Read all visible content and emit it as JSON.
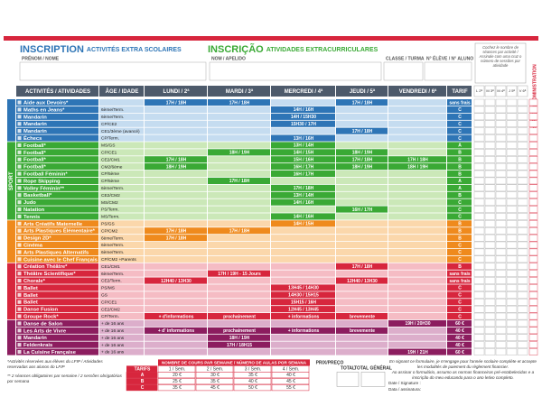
{
  "header": {
    "title_fr": "INSCRIPTION",
    "subtitle_fr": "ACTIVITÉS EXTRA SCOLAIRES",
    "title_pt": "INSCRIÇÃO",
    "subtitle_pt": "ATIVIDADES EXTRACURRICULARES",
    "fields": [
      "PRÉNOM / NOME",
      "NOM / APELIDO",
      "CLASSE / TURMA",
      "N° ÉLÈVE / N° ALUNO"
    ],
    "note": "Cochez le nombre de séances par activité / Assinale com uma cruz o número de sessões por atividade",
    "admin": "RÉSERVÉ À L'ADMINISTRATION"
  },
  "table": {
    "columns": [
      "ACTIVITÉS / ATIVIDADES",
      "ÂGE / IDADE",
      "LUNDI / 2ª",
      "MARDI / 3ª",
      "MERCREDI / 4ª",
      "JEUDI / 5ª",
      "VENDREDI / 6ª",
      "TARIF"
    ],
    "day_boxes": [
      "L 2ª",
      "M 3ª",
      "M 4ª",
      "J 5ª",
      "V 6ª"
    ],
    "groups": [
      {
        "color": "#2e75b6",
        "light": "#c5dcf0",
        "rows": [
          {
            "activity": "Aide aux Devoirs*",
            "age": null,
            "slots": [
              "17H / 18H",
              "17H / 18H",
              null,
              "17H / 18H",
              null
            ],
            "tarif": "sans frais"
          },
          {
            "activity": "Maths en Jeans*",
            "age": "6ème/Term.",
            "slots": [
              null,
              null,
              "14H / 16H",
              null,
              null
            ],
            "tarif": "C"
          },
          {
            "activity": "Mandarin",
            "age": "6ème/Term.",
            "slots": [
              null,
              null,
              "14H / 15H30",
              null,
              null
            ],
            "tarif": "C"
          },
          {
            "activity": "Mandarin",
            "age": "CP/CE2",
            "slots": [
              null,
              null,
              "15H30 / 17H",
              null,
              null
            ],
            "tarif": "C"
          },
          {
            "activity": "Mandarin",
            "age": "CE1/3ème (avancé)",
            "slots": [
              null,
              null,
              null,
              "17H / 18H",
              null
            ],
            "tarif": "C"
          },
          {
            "activity": "Échecs",
            "age": "CP/Term.",
            "slots": [
              null,
              null,
              "13H / 16H",
              null,
              null
            ],
            "tarif": "C"
          }
        ]
      },
      {
        "label": "SPORT",
        "color": "#3aa935",
        "light": "#cbe8b8",
        "rows": [
          {
            "activity": "Football*",
            "age": "MS/GS",
            "slots": [
              null,
              null,
              "13H / 14H",
              null,
              null
            ],
            "tarif": "A"
          },
          {
            "activity": "Football*",
            "age": "CP/CE1",
            "slots": [
              null,
              "18H / 19H",
              "14H / 15H",
              "18H / 19H",
              null
            ],
            "tarif": "B"
          },
          {
            "activity": "Football*",
            "age": "CE2/CM1",
            "slots": [
              "17H / 18H",
              null,
              "15H / 16H",
              "17H / 18H",
              "17H / 18H"
            ],
            "tarif": "B"
          },
          {
            "activity": "Football*",
            "age": "CM2/6ème",
            "slots": [
              "18H / 19H",
              null,
              "16H / 17H",
              "18H / 19H",
              "18H / 19H"
            ],
            "tarif": "B"
          },
          {
            "activity": "Football Féminin*",
            "age": "CP/5ème",
            "slots": [
              null,
              null,
              "16H / 17H",
              null,
              null
            ],
            "tarif": "B"
          },
          {
            "activity": "Rope Skipping",
            "age": "CP/5ème",
            "slots": [
              null,
              "17H / 18H",
              null,
              null,
              null
            ],
            "tarif": "A"
          },
          {
            "activity": "Volley Féminin**",
            "age": "6ème/Term.",
            "slots": [
              null,
              null,
              "17H / 18H",
              null,
              null
            ],
            "tarif": "A"
          },
          {
            "activity": "Basketball*",
            "age": "CE2/CM2",
            "slots": [
              null,
              null,
              "13H / 14H",
              null,
              null
            ],
            "tarif": "B"
          },
          {
            "activity": "Judo",
            "age": "MS/CM2",
            "slots": [
              null,
              null,
              "14H / 16H",
              null,
              null
            ],
            "tarif": "C"
          },
          {
            "activity": "Natation",
            "age": "PS/Term.",
            "slots": [
              null,
              null,
              null,
              "16H / 17H",
              null
            ],
            "tarif": "C"
          },
          {
            "activity": "Tennis",
            "age": "MS/Term.",
            "slots": [
              null,
              null,
              "14H / 16H",
              null,
              null
            ],
            "tarif": "C"
          }
        ]
      },
      {
        "color": "#ef8a1d",
        "light": "#fbd7ab",
        "rows": [
          {
            "activity": "Arts Créatifs Maternelle",
            "age": "PS/GS",
            "slots": [
              null,
              null,
              "14H / 15H",
              null,
              null
            ],
            "tarif": "B"
          },
          {
            "activity": "Arts Plastiques Élémentaire*",
            "age": "CP/CM2",
            "slots": [
              "17H / 18H",
              "17H / 18H",
              null,
              null,
              null
            ],
            "tarif": "B"
          },
          {
            "activity": "Design 2D*",
            "age": "6ème/Term.",
            "slots": [
              "17H / 18H",
              null,
              null,
              null,
              null
            ],
            "tarif": "B"
          },
          {
            "activity": "Cinéma",
            "age": "6ème/Term.",
            "slots": [
              null,
              null,
              null,
              null,
              null
            ],
            "tarif": "C"
          },
          {
            "activity": "Arts Plastiques Alternatifs",
            "age": "6ème/Term.",
            "slots": [
              null,
              null,
              null,
              null,
              null
            ],
            "tarif": "C"
          },
          {
            "activity": "Cuisine avec le Chef Français",
            "age": "CP/CM2 +Parents",
            "slots": [
              null,
              null,
              null,
              null,
              null
            ],
            "tarif": "C"
          }
        ]
      },
      {
        "color": "#d7263d",
        "light": "#f5bcc4",
        "rows": [
          {
            "activity": "Création Théâtre*",
            "age": "CE1/CM1",
            "slots": [
              null,
              null,
              null,
              "17H / 18H",
              null
            ],
            "tarif": "B"
          },
          {
            "activity": "Théâtre Scientifique*",
            "age": "6ème/Term.",
            "slots": [
              null,
              "17H / 19H - 15 Jours",
              null,
              null,
              null
            ],
            "tarif": "sans frais"
          },
          {
            "activity": "Chorale*",
            "age": "CE2/Term.",
            "slots": [
              "12H40 / 13H30",
              null,
              null,
              "12H40 / 13H30",
              null
            ],
            "tarif": "sans frais"
          },
          {
            "activity": "Ballet",
            "age": "PS/MS",
            "slots": [
              null,
              null,
              "13H45 / 14H30",
              null,
              null
            ],
            "tarif": "C"
          },
          {
            "activity": "Ballet",
            "age": "GS",
            "slots": [
              null,
              null,
              "14H30 / 15H15",
              null,
              null
            ],
            "tarif": "C"
          },
          {
            "activity": "Ballet",
            "age": "CP/CE1",
            "slots": [
              null,
              null,
              "15H15 / 16H",
              null,
              null
            ],
            "tarif": "C"
          },
          {
            "activity": "Danse Fusion",
            "age": "CE2/CM2",
            "slots": [
              null,
              null,
              "12H45 / 13H45",
              null,
              null
            ],
            "tarif": "C"
          },
          {
            "activity": "Groupe Rock*",
            "age": "CP/Term.",
            "slots": [
              "+ d'informations",
              "prochainement",
              "+ informations",
              "brevemente",
              null
            ],
            "tarif": "C"
          }
        ]
      },
      {
        "color": "#8c1d5f",
        "light": "#dcaecb",
        "rows": [
          {
            "activity": "Danse de Salon",
            "age": "+ de 16 ans",
            "slots": [
              null,
              null,
              null,
              null,
              "19H / 20H30"
            ],
            "tarif": "60 €"
          },
          {
            "activity": "Les Arts de Vivre",
            "age": "+ de 16 ans",
            "slots": [
              "+ d' informations",
              "prochainement",
              "+ informations",
              "brevemente",
              null
            ],
            "tarif": "40 €"
          },
          {
            "activity": "Mandarin",
            "age": "+ de 16 ans",
            "slots": [
              null,
              "18H / 19H",
              null,
              null,
              null
            ],
            "tarif": "40 €"
          },
          {
            "activity": "Feldenkrais",
            "age": "+ de 16 ans",
            "slots": [
              null,
              "17H / 18H15",
              null,
              null,
              null
            ],
            "tarif": "40 €"
          },
          {
            "activity": "La Cuisine Française",
            "age": "+ de 16 ans",
            "slots": [
              null,
              null,
              null,
              null,
              "19H / 21H"
            ],
            "tarif": "60 €"
          }
        ]
      }
    ]
  },
  "footer": {
    "notes": [
      "*Activités réservées aux élèves du LFIP / Atividades reservadas aos alunos do LFIP",
      "** 2 séances obligatoires par semaine / 2 sessões obrigatórias por semana"
    ],
    "pricing": {
      "caption": "NOMBRE DE COURS PAR SEMAINE / NÚMERO DE AULAS POR SEMANA",
      "corner": "TARIFS",
      "columns": [
        "1 / Sem.",
        "2 / Sem.",
        "3 / Sem.",
        "4 / Sem."
      ],
      "rows": [
        [
          "A",
          "20 €",
          "30 €",
          "35 €",
          "40 €"
        ],
        [
          "B",
          "25 €",
          "35 €",
          "40 €",
          "45 €"
        ],
        [
          "C",
          "35 €",
          "45 €",
          "50 €",
          "55 €"
        ]
      ]
    },
    "price": "PRIX/PREÇO",
    "total": "TOTAL",
    "grand_total": "TOTAL GÉNÉRAL",
    "signature": [
      "En signant ce formulaire, je m'engage pour l'année scolaire complète et accepte les modalités de paiement du règlement financier.",
      "Ao assinar o formulário, assumo as normas financeiras pré-estabelecidas e a inscrição do meu educando para o ano letivo completo.",
      "Date / Signature :",
      "Data / assinatura:"
    ]
  }
}
